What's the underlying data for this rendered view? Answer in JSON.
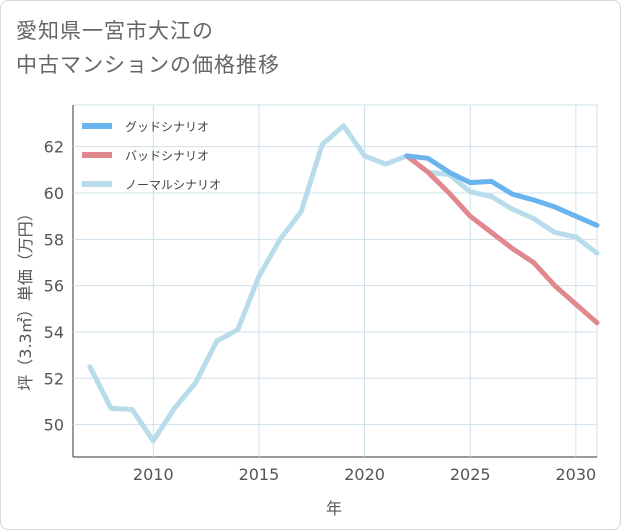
{
  "title_lines": [
    "愛知県一宮市大江の",
    "中古マンションの価格推移"
  ],
  "chart_data": {
    "type": "line",
    "title": "愛知県一宮市大江の中古マンションの価格推移",
    "xlabel": "年",
    "ylabel": "坪（3.3㎡）単価（万円）",
    "xlim": [
      2006.2,
      2031
    ],
    "ylim": [
      48.6,
      63.8
    ],
    "xticks": [
      2010,
      2015,
      2020,
      2025,
      2030
    ],
    "yticks": [
      50,
      52,
      54,
      56,
      58,
      60,
      62
    ],
    "grid": true,
    "legend_position": "top-left",
    "series": [
      {
        "name": "グッドシナリオ",
        "color": "#6ab4ee",
        "x": [
          2022,
          2023,
          2024,
          2025,
          2026,
          2027,
          2028,
          2029,
          2030,
          2031
        ],
        "y": [
          61.6,
          61.5,
          60.9,
          60.45,
          60.5,
          59.95,
          59.7,
          59.4,
          59.0,
          58.6
        ]
      },
      {
        "name": "バッドシナリオ",
        "color": "#e0888e",
        "x": [
          2022,
          2023,
          2024,
          2025,
          2026,
          2027,
          2028,
          2029,
          2030,
          2031
        ],
        "y": [
          61.6,
          60.9,
          60.0,
          59.0,
          58.3,
          57.6,
          57.0,
          56.0,
          55.2,
          54.4
        ]
      },
      {
        "name": "ノーマルシナリオ",
        "color": "#b8dcea",
        "x": [
          2007,
          2008,
          2009,
          2010,
          2011,
          2012,
          2013,
          2014,
          2015,
          2016,
          2017,
          2018,
          2019,
          2020,
          2021,
          2022,
          2023,
          2024,
          2025,
          2026,
          2027,
          2028,
          2029,
          2030,
          2031
        ],
        "y": [
          52.5,
          50.7,
          50.65,
          49.3,
          50.7,
          51.8,
          53.6,
          54.1,
          56.4,
          58.0,
          59.2,
          62.1,
          62.9,
          61.6,
          61.25,
          61.6,
          60.9,
          60.8,
          60.05,
          59.85,
          59.3,
          58.9,
          58.3,
          58.1,
          57.4
        ]
      }
    ]
  }
}
